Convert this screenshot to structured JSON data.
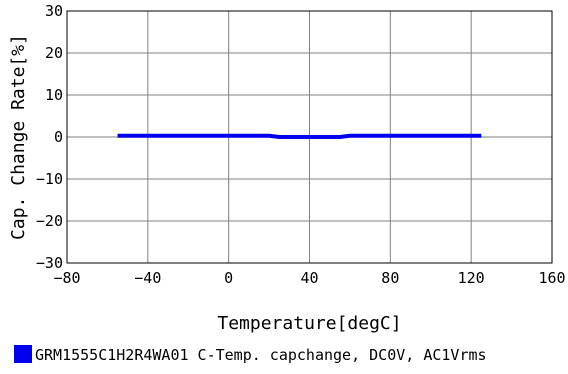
{
  "chart_data": {
    "type": "line",
    "xlabel": "Temperature[degC]",
    "ylabel": "Cap. Change Rate[%]",
    "xlim": [
      -80,
      160
    ],
    "ylim": [
      -30,
      30
    ],
    "xticks": [
      -80,
      -40,
      0,
      40,
      80,
      120,
      160
    ],
    "yticks": [
      -30,
      -20,
      -10,
      0,
      10,
      20,
      30
    ],
    "x_tick_labels": [
      "−80",
      "−40",
      "0",
      "40",
      "80",
      "120",
      "160"
    ],
    "y_tick_labels": [
      "−30",
      "−20",
      "−10",
      "0",
      "10",
      "20",
      "30"
    ],
    "grid": true,
    "legend_position": "bottom",
    "series": [
      {
        "name": "GRM1555C1H2R4WA01 C-Temp. capchange, DC0V, AC1Vrms",
        "color": "#0000ee",
        "x": [
          -55,
          -40,
          -20,
          0,
          20,
          25,
          40,
          55,
          60,
          80,
          100,
          125
        ],
        "y": [
          0.3,
          0.3,
          0.3,
          0.3,
          0.3,
          0.0,
          0.0,
          0.0,
          0.3,
          0.3,
          0.3,
          0.3
        ]
      }
    ]
  }
}
